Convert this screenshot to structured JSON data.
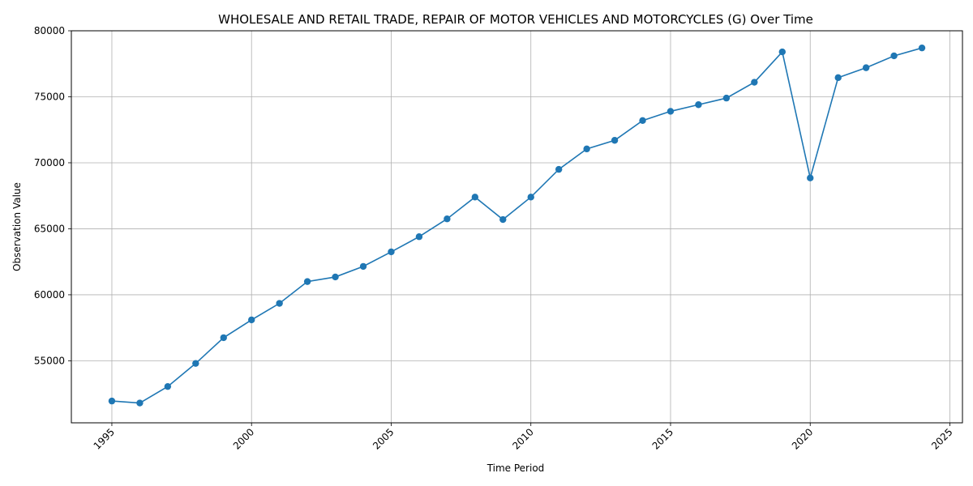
{
  "chart_data": {
    "type": "line",
    "title": "WHOLESALE AND RETAIL TRADE, REPAIR OF MOTOR VEHICLES AND MOTORCYCLES (G) Over Time",
    "xlabel": "Time Period",
    "ylabel": "Observation Value",
    "xlim": [
      1993.55,
      1925.45
    ],
    "ylim": [
      50300,
      80000
    ],
    "x_ticks": [
      1995,
      2000,
      2005,
      2010,
      2015,
      2020,
      2025
    ],
    "y_ticks": [
      55000,
      60000,
      65000,
      70000,
      75000,
      80000
    ],
    "grid": true,
    "colors": {
      "series": "#1f77b4",
      "grid": "#b0b0b0"
    },
    "x": [
      1995,
      1996,
      1997,
      1998,
      1999,
      2000,
      2001,
      2002,
      2003,
      2004,
      2005,
      2006,
      2007,
      2008,
      2009,
      2010,
      2011,
      2012,
      2013,
      2014,
      2015,
      2016,
      2017,
      2018,
      2019,
      2020,
      2021,
      2022,
      2023,
      2024
    ],
    "series": [
      {
        "values": [
          51950,
          51800,
          53050,
          54800,
          56750,
          58100,
          59350,
          61000,
          61350,
          62150,
          63250,
          64400,
          65750,
          67400,
          65700,
          67400,
          69500,
          71050,
          71700,
          73200,
          73900,
          74400,
          74900,
          76100,
          78400,
          68850,
          76450,
          77200,
          78100,
          78700
        ]
      }
    ]
  }
}
